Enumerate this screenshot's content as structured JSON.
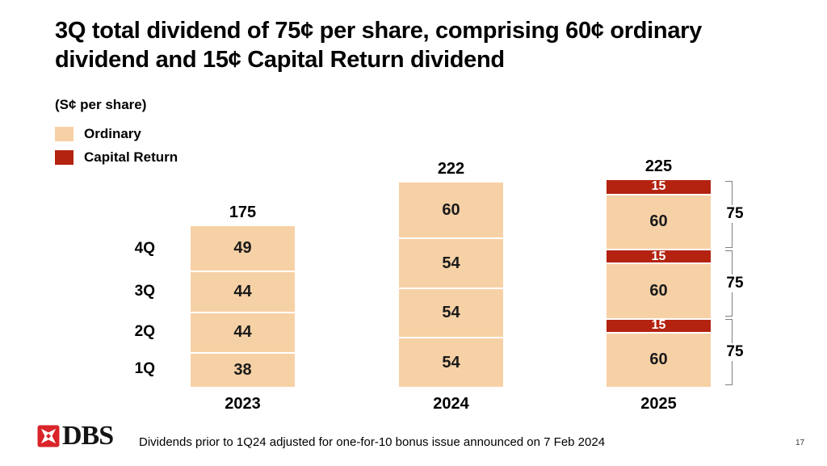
{
  "slide": {
    "title": "3Q total dividend of 75¢ per share, comprising 60¢ ordinary dividend and 15¢ Capital Return dividend",
    "units_label": "(S¢ per share)",
    "footnote": "Dividends prior to 1Q24 adjusted for one-for-10 bonus issue announced on 7 Feb 2024",
    "logo_text": "DBS",
    "page_number": "17"
  },
  "legend": {
    "items": [
      {
        "id": "ordinary",
        "label": "Ordinary",
        "color": "#F7D1A6"
      },
      {
        "id": "capital_return",
        "label": "Capital Return",
        "color": "#B32310"
      }
    ]
  },
  "chart_data": {
    "type": "bar",
    "stacked": true,
    "unit": "S¢ per share",
    "categories": [
      "2023",
      "2024",
      "2025"
    ],
    "quarter_axis_labels": [
      "4Q",
      "3Q",
      "2Q",
      "1Q"
    ],
    "colors": {
      "ordinary": "#F7D1A6",
      "capital_return": "#B32310"
    },
    "bars": [
      {
        "category": "2023",
        "total": "175",
        "segments_bottom_to_top": [
          {
            "series": "ordinary",
            "value": 38
          },
          {
            "series": "ordinary",
            "value": 44
          },
          {
            "series": "ordinary",
            "value": 44
          },
          {
            "series": "ordinary",
            "value": 49
          }
        ]
      },
      {
        "category": "2024",
        "total": "222",
        "segments_bottom_to_top": [
          {
            "series": "ordinary",
            "value": 54
          },
          {
            "series": "ordinary",
            "value": 54
          },
          {
            "series": "ordinary",
            "value": 54
          },
          {
            "series": "ordinary",
            "value": 60
          }
        ]
      },
      {
        "category": "2025",
        "total": "225",
        "segments_bottom_to_top": [
          {
            "series": "ordinary",
            "value": 60
          },
          {
            "series": "capital_return",
            "value": 15
          },
          {
            "series": "ordinary",
            "value": 60
          },
          {
            "series": "capital_return",
            "value": 15
          },
          {
            "series": "ordinary",
            "value": 60
          },
          {
            "series": "capital_return",
            "value": 15
          }
        ]
      }
    ],
    "brackets": [
      {
        "category": "2025",
        "label": "75",
        "span_values": 75
      },
      {
        "category": "2025",
        "label": "75",
        "span_values": 75
      },
      {
        "category": "2025",
        "label": "75",
        "span_values": 75
      }
    ]
  }
}
